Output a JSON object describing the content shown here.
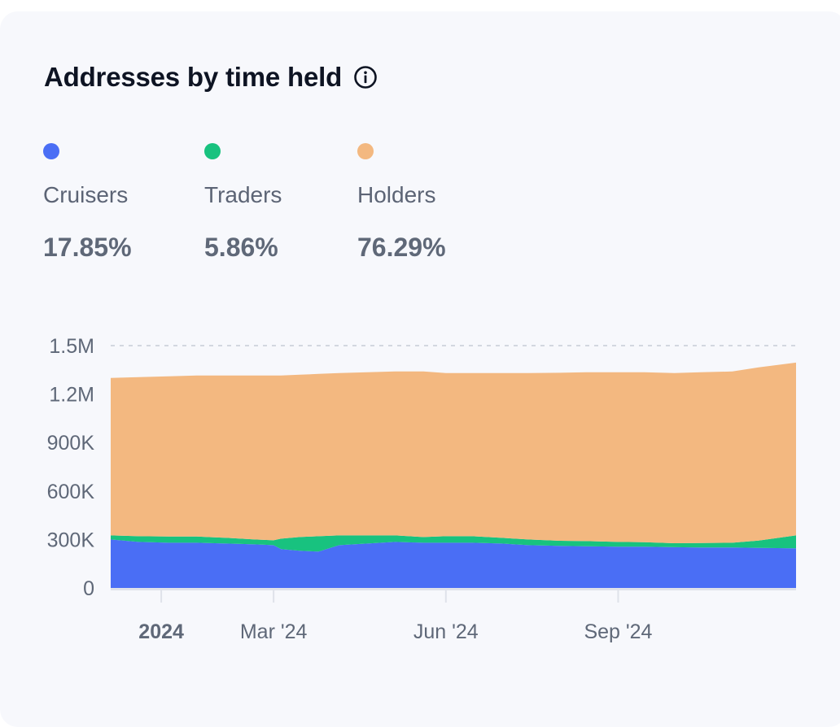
{
  "header": {
    "title": "Addresses by time held"
  },
  "legend": [
    {
      "label": "Cruisers",
      "value": "17.85%",
      "color": "#4a6ef5"
    },
    {
      "label": "Traders",
      "value": "5.86%",
      "color": "#18c27f"
    },
    {
      "label": "Holders",
      "value": "76.29%",
      "color": "#f3b880"
    }
  ],
  "chart_data": {
    "type": "area",
    "stacked": true,
    "title": "Addresses by time held",
    "xlabel": "",
    "ylabel": "",
    "ylim": [
      0,
      1500000
    ],
    "y_ticks": [
      {
        "value": 0,
        "label": "0"
      },
      {
        "value": 300000,
        "label": "300K"
      },
      {
        "value": 600000,
        "label": "600K"
      },
      {
        "value": 900000,
        "label": "900K"
      },
      {
        "value": 1200000,
        "label": "1.2M"
      },
      {
        "value": 1500000,
        "label": "1.5M"
      }
    ],
    "x_ticks": [
      {
        "date": "2024-01-01",
        "label": "2024",
        "bold": true
      },
      {
        "date": "2024-03-01",
        "label": "Mar '24",
        "bold": false
      },
      {
        "date": "2024-06-01",
        "label": "Jun '24",
        "bold": false
      },
      {
        "date": "2024-09-01",
        "label": "Sep '24",
        "bold": false
      }
    ],
    "x_range": [
      "2023-12-05",
      "2024-12-05"
    ],
    "grid": "top dashed line at 1.5M",
    "x": [
      "2023-12-05",
      "2023-12-20",
      "2024-01-05",
      "2024-01-20",
      "2024-02-05",
      "2024-02-20",
      "2024-03-01",
      "2024-03-05",
      "2024-03-15",
      "2024-03-25",
      "2024-04-05",
      "2024-04-20",
      "2024-05-05",
      "2024-05-20",
      "2024-06-01",
      "2024-06-15",
      "2024-07-01",
      "2024-07-15",
      "2024-08-01",
      "2024-08-15",
      "2024-09-01",
      "2024-09-15",
      "2024-10-01",
      "2024-10-15",
      "2024-11-01",
      "2024-11-15",
      "2024-12-05"
    ],
    "series": [
      {
        "name": "Cruisers",
        "color": "#4a6ef5",
        "values": [
          300000,
          285000,
          280000,
          280000,
          275000,
          270000,
          265000,
          240000,
          230000,
          225000,
          265000,
          275000,
          285000,
          280000,
          280000,
          280000,
          275000,
          265000,
          260000,
          258000,
          255000,
          255000,
          252000,
          250000,
          250000,
          248000,
          245000
        ]
      },
      {
        "name": "Traders",
        "color": "#18c27f",
        "values": [
          25000,
          35000,
          38000,
          38000,
          35000,
          30000,
          30000,
          65000,
          85000,
          95000,
          60000,
          50000,
          40000,
          35000,
          40000,
          40000,
          35000,
          35000,
          32000,
          32000,
          30000,
          28000,
          25000,
          28000,
          30000,
          45000,
          80000
        ]
      },
      {
        "name": "Holders",
        "color": "#f3b880",
        "values": [
          975000,
          985000,
          992000,
          997000,
          1005000,
          1015000,
          1020000,
          1010000,
          1005000,
          1005000,
          1005000,
          1010000,
          1015000,
          1025000,
          1010000,
          1010000,
          1020000,
          1030000,
          1040000,
          1045000,
          1050000,
          1052000,
          1053000,
          1057000,
          1060000,
          1072000,
          1070000
        ]
      }
    ]
  }
}
